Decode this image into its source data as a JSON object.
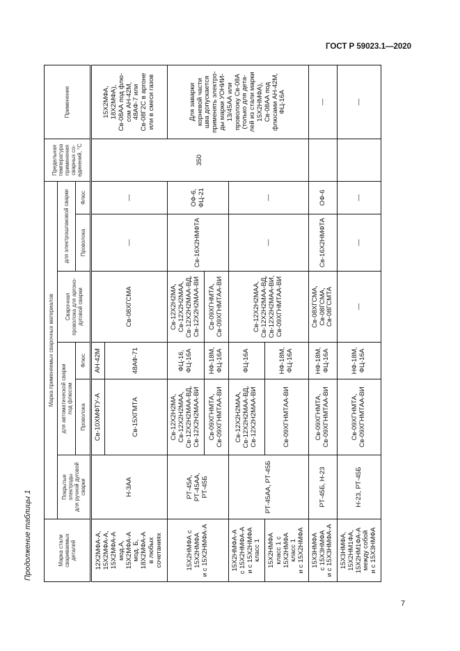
{
  "header": {
    "standard": "ГОСТ Р 59023.1—2020",
    "continuation": "Продолжение таблицы 1"
  },
  "page_number": "7",
  "columns": {
    "steel": "Марка стали\nсвариваемых\nдеталей",
    "materials": "Марка применяемых сварочных материалов",
    "electrodes": "Покрытые\nэлектроды\nдля ручной дуговой\nсварки",
    "auto": "для автоматической сварки\nпод флюсом",
    "auto_wire": "Проволока",
    "auto_flux": "Флюс",
    "argon": "Сварочная\nпроволока для аргоно-\nдуговой сварки",
    "es": "для электрошлаковой сварки",
    "es_wire": "Проволока",
    "es_flux": "Флюс",
    "temp": "Предельная\nтемпература\nприменения\nсварных со-\nединений, °С",
    "use": "Применение"
  },
  "rows": [
    {
      "steel": "12Х2МФА-А,\n15Х2МФА-А,\n15Х2МФА-А\nмод.А,\n15Х2МФА-А\nмод. Б,\n18Х2МФА-А\nв любых\nсочетаниях",
      "electrodes": "Н-3АА",
      "auto": [
        {
          "wire": "Св-10ХМФТУ-А",
          "flux": "АН-42М"
        },
        {
          "wire": "Св-15ХГМТА",
          "flux": "48АФ-71"
        }
      ],
      "argon": "Св-08ХГСМА",
      "es_wire": "—",
      "es_flux": "—",
      "temp": "350",
      "use": "15Х2МФА,\n18Х2МФА),\nСв-08АА под флю-\nсом АН-42М,\n48АФ-7 или\nСв-08Г2С в аргоне\nили в смеси газов"
    },
    {
      "steel": "15Х2НМФА с\n15Х2НМФА\nи с 15Х2НМФА-А",
      "electrodes": "РТ-45А,\nРТ-45АА,\nРТ-45Б",
      "auto": [
        {
          "wire": "Св-12Х2Н2МА,\nСв-12Х2Н2МАА,\nСв-12Х2Н2МАА-ВД,\nСв-12Х2Н2МАА-ВИ",
          "flux": "ФЦ-16,\nФЦ-16А",
          "argon": "Св-12Х2Н2МА,\nСв-12Х2Н2МАА,\nСв-12Х2Н2МАА-ВД,\nСв-12Х2Н2МАА-ВИ"
        },
        {
          "wire": "Св-09ХГНМТА,\nСв-09ХГНМТАА-ВИ",
          "flux": "НФ-18М,\nФЦ-16А",
          "argon": "Св-09ХГНМТА,\nСв-09ХГНМТАА-ВИ"
        }
      ],
      "es_wire": "Св-16Х2НМФТА",
      "es_flux": "ОФ-6,\nФЦ-21",
      "use": "Для заварки\nкорневой части\nшва допускается\nприменять электро-\nды марки УОНИИ-\n13/45АА или\nпроволоку Св-08А\n(только для дета-\nлей из стали марки\n15Х2НМФА),\nСв-08АА под\nфлюсами АН-42М,\nФЦ-16А"
    },
    {
      "steel": "15Х2НМФА-А\nс 15Х2НМФА-А\nи с 15Х2НМФА\nкласс 1",
      "electrodes": "РТ-45АА, РТ-45Б",
      "wire": "Св-12Х2Н2МАА,\nСв-12Х2Н2МАА-ВД,\nСв-12Х2Н2МАА-ВИ",
      "flux": "ФЦ-16А",
      "argon": "Св-12Х2Н2МАА,\nСв-12Х2Н2МАА-ВД,\nСв-12Х2Н2МАА-ВИ,\nСв-09ХГНМТАА-ВИ",
      "es_wire": "—",
      "es_flux": "—"
    },
    {
      "steel": "15Х2НМФА\nкласс 1 с\n15Х2НМФА\nкласс 1\nи с 15Х2НМФА",
      "wire": "Св-09ХГНМТАА-ВИ",
      "flux": "НФ-18М,\nФЦ-16А"
    },
    {
      "steel": "15Х3НМФА\nс 15Х3НМФА\nи с 15Х3НМФА-А",
      "electrodes": "РТ-45Б, Н-23",
      "wire": "Св-09ХГНМТА,\nСв-09ХГНМТАА-ВИ",
      "flux": "НФ-18М,\nФЦ-16А",
      "argon": "Св-08ХГСМА,\nСв-08ГСМА,\nСв-08ГСМТА",
      "es_wire": "Св-16Х2НМФТА",
      "es_flux": "ОФ-6",
      "use": "—"
    },
    {
      "steel": "15Х3НМФА,\n15Х2НМ1ФА,\n15Х2НМ1ФА-А\nмежду собой\nи с 15Х3НМФА",
      "electrodes": "Н-23, РТ-45Б",
      "wire": "Св-09ХГНМТА,\nСв-09ХГНМТАА-ВИ",
      "flux": "НФ-18М,\nФЦ-16А",
      "argon": "—",
      "es_wire": "—",
      "es_flux": "—",
      "use": "—"
    }
  ]
}
